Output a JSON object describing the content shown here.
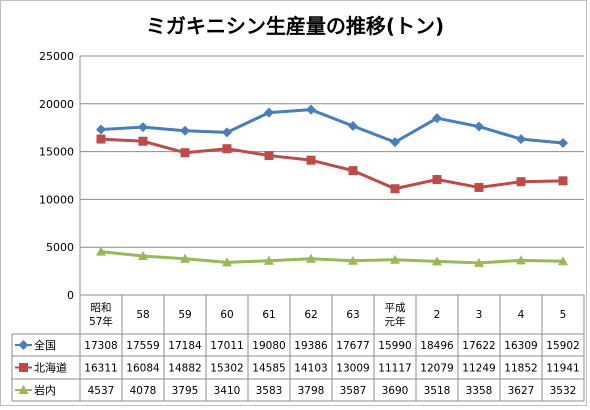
{
  "chart_data": {
    "type": "line",
    "title": "ミガキニシン生産量の推移(トン)",
    "categories": [
      "昭和\n57年",
      "58",
      "59",
      "60",
      "61",
      "62",
      "63",
      "平成\n元年",
      "2",
      "3",
      "4",
      "5"
    ],
    "ylim": [
      0,
      25000
    ],
    "yticks": [
      0,
      5000,
      10000,
      15000,
      20000,
      25000
    ],
    "grid": true,
    "legend": "data-table",
    "series": [
      {
        "name": "全国",
        "color": "#4a7ebb",
        "marker": "diamond",
        "values": [
          17308,
          17559,
          17184,
          17011,
          19080,
          19386,
          17677,
          15990,
          18496,
          17622,
          16309,
          15902
        ]
      },
      {
        "name": "北海道",
        "color": "#be4b48",
        "marker": "square",
        "values": [
          16311,
          16084,
          14882,
          15302,
          14585,
          14103,
          13009,
          11117,
          12079,
          11249,
          11852,
          11941
        ]
      },
      {
        "name": "岩内",
        "color": "#98b954",
        "marker": "triangle",
        "values": [
          4537,
          4078,
          3795,
          3410,
          3583,
          3798,
          3587,
          3690,
          3518,
          3358,
          3627,
          3532
        ]
      }
    ]
  }
}
